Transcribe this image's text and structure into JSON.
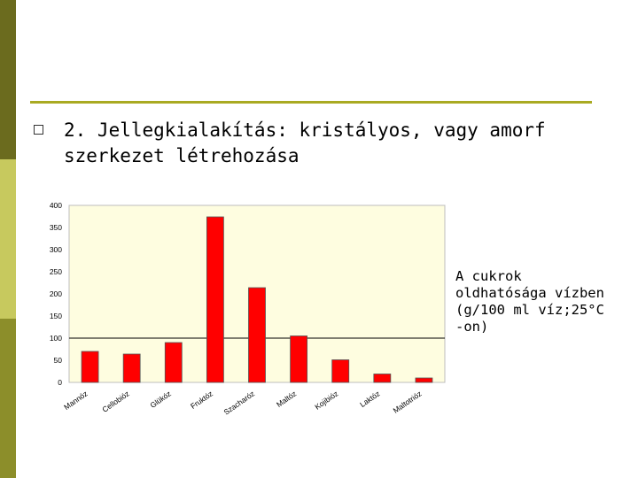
{
  "slide": {
    "bullet_text": "2. Jellegkialakítás: kristályos, vagy amorf szerkezet létrehozása",
    "note_lines": [
      "A cukrok",
      "oldhatósága vízben",
      "(g/100 ml víz;25°C",
      "-on)"
    ]
  },
  "theme": {
    "sidebar_dark": "#6b6b1e",
    "sidebar_light": "#c7c95e",
    "rule_color": "#a9aa22",
    "plot_bg": "#fefde0",
    "bar_color": "#ff0000"
  },
  "chart_data": {
    "type": "bar",
    "title": "",
    "xlabel": "",
    "ylabel": "",
    "categories": [
      "Mannóz",
      "Cellobióz",
      "Glükóz",
      "Fruktóz",
      "Szacharóz",
      "Maltóz",
      "Kojibióz",
      "Laktóz",
      "Maltotrióz"
    ],
    "values": [
      70,
      64,
      90,
      374,
      214,
      105,
      51,
      19,
      10
    ],
    "ylim": [
      0,
      400
    ],
    "yticks": [
      "0",
      "50",
      "100",
      "150",
      "200",
      "250",
      "300",
      "350",
      "400"
    ],
    "grid": false,
    "reference_line": 100
  }
}
